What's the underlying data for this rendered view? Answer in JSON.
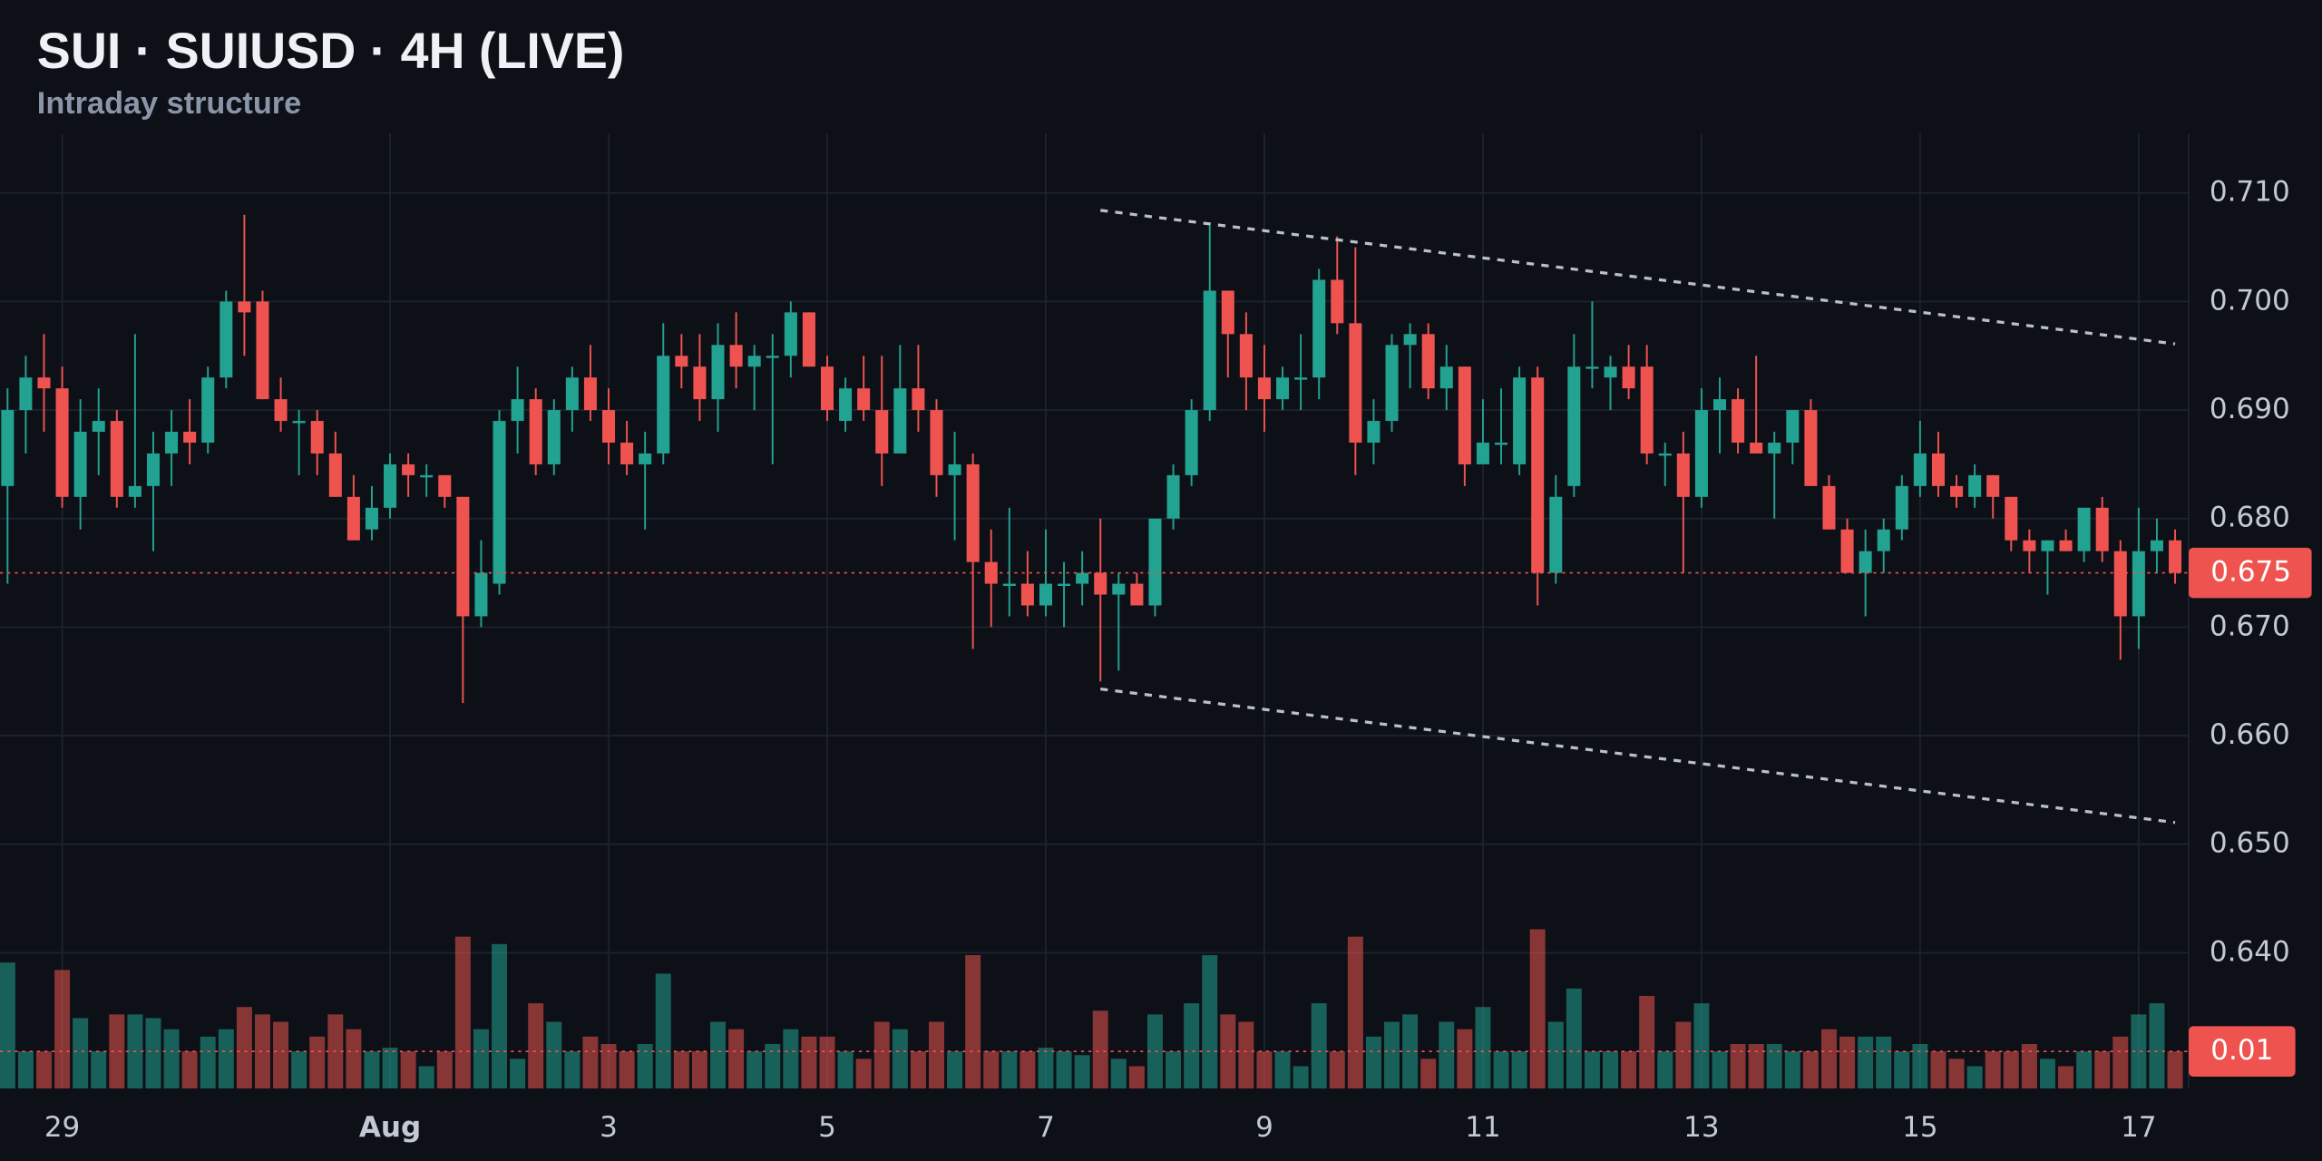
{
  "chart_data": {
    "type": "candlestick",
    "title": "SUI · SUIUSD · 4H (LIVE)",
    "subtitle": "Intraday structure",
    "categories": [
      null,
      null,
      null,
      "29",
      null,
      null,
      null,
      null,
      null,
      null,
      null,
      null,
      null,
      null,
      null,
      null,
      null,
      null,
      null,
      null,
      null,
      "Aug",
      null,
      null,
      null,
      null,
      null,
      null,
      null,
      null,
      null,
      null,
      null,
      "3",
      null,
      null,
      null,
      null,
      null,
      null,
      null,
      null,
      null,
      null,
      null,
      "5",
      null,
      null,
      null,
      null,
      null,
      null,
      null,
      null,
      null,
      null,
      null,
      "7",
      null,
      null,
      null,
      null,
      null,
      null,
      null,
      null,
      null,
      null,
      null,
      "9",
      null,
      null,
      null,
      null,
      null,
      null,
      null,
      null,
      null,
      null,
      null,
      "11",
      null,
      null,
      null,
      null,
      null,
      null,
      null,
      null,
      null,
      null,
      null,
      "13",
      null,
      null,
      null,
      null,
      null,
      null,
      null,
      null,
      null,
      null,
      null,
      "15",
      null,
      null,
      null,
      null,
      null,
      null,
      null,
      null,
      null,
      null,
      null,
      "17",
      null,
      null
    ],
    "open": [
      0.683,
      0.69,
      0.693,
      0.692,
      0.682,
      0.688,
      0.689,
      0.682,
      0.683,
      0.686,
      0.688,
      0.687,
      0.693,
      0.7,
      0.7,
      0.691,
      0.689,
      0.689,
      0.686,
      0.682,
      0.679,
      0.681,
      0.685,
      0.684,
      0.684,
      0.682,
      0.671,
      0.674,
      0.689,
      0.691,
      0.685,
      0.69,
      0.693,
      0.69,
      0.687,
      0.685,
      0.686,
      0.695,
      0.694,
      0.691,
      0.696,
      0.694,
      0.695,
      0.695,
      0.699,
      0.694,
      0.689,
      0.692,
      0.69,
      0.686,
      0.692,
      0.69,
      0.684,
      0.685,
      0.676,
      0.674,
      0.674,
      0.672,
      0.674,
      0.674,
      0.675,
      0.673,
      0.674,
      0.672,
      0.68,
      0.684,
      0.69,
      0.701,
      0.697,
      0.693,
      0.691,
      0.693,
      0.693,
      0.702,
      0.698,
      0.687,
      0.689,
      0.696,
      0.697,
      0.692,
      0.694,
      0.685,
      0.687,
      0.685,
      0.693,
      0.675,
      0.683,
      0.694,
      0.693,
      0.694,
      0.694,
      0.686,
      0.686,
      0.682,
      0.69,
      0.691,
      0.687,
      0.686,
      0.687,
      0.69,
      0.683,
      0.679,
      0.675,
      0.677,
      0.679,
      0.683,
      0.686,
      0.683,
      0.682,
      0.684,
      0.682,
      0.678,
      0.677,
      0.678,
      0.677,
      0.681,
      0.677,
      0.671,
      0.677,
      0.678
    ],
    "high": [
      0.692,
      0.695,
      0.697,
      0.694,
      0.691,
      0.692,
      0.69,
      0.697,
      0.688,
      0.69,
      0.691,
      0.694,
      0.701,
      0.708,
      0.701,
      0.693,
      0.69,
      0.69,
      0.688,
      0.684,
      0.683,
      0.686,
      0.686,
      0.685,
      0.684,
      0.682,
      0.678,
      0.69,
      0.694,
      0.692,
      0.691,
      0.694,
      0.696,
      0.692,
      0.689,
      0.688,
      0.698,
      0.697,
      0.697,
      0.698,
      0.699,
      0.696,
      0.697,
      0.7,
      0.699,
      0.695,
      0.693,
      0.695,
      0.695,
      0.696,
      0.696,
      0.691,
      0.688,
      0.686,
      0.679,
      0.681,
      0.677,
      0.679,
      0.676,
      0.677,
      0.68,
      0.675,
      0.675,
      0.68,
      0.685,
      0.691,
      0.707,
      0.701,
      0.699,
      0.696,
      0.694,
      0.697,
      0.703,
      0.706,
      0.705,
      0.691,
      0.697,
      0.698,
      0.698,
      0.696,
      0.694,
      0.691,
      0.692,
      0.694,
      0.694,
      0.684,
      0.697,
      0.7,
      0.695,
      0.696,
      0.696,
      0.687,
      0.688,
      0.692,
      0.693,
      0.692,
      0.695,
      0.688,
      0.69,
      0.691,
      0.684,
      0.68,
      0.679,
      0.68,
      0.684,
      0.689,
      0.688,
      0.684,
      0.685,
      0.684,
      0.682,
      0.679,
      0.678,
      0.679,
      0.681,
      0.682,
      0.678,
      0.681,
      0.68,
      0.679
    ],
    "low": [
      0.674,
      0.686,
      0.688,
      0.681,
      0.679,
      0.684,
      0.681,
      0.681,
      0.677,
      0.683,
      0.685,
      0.686,
      0.692,
      0.695,
      0.691,
      0.688,
      0.684,
      0.684,
      0.682,
      0.678,
      0.678,
      0.68,
      0.682,
      0.682,
      0.681,
      0.663,
      0.67,
      0.673,
      0.686,
      0.684,
      0.684,
      0.688,
      0.689,
      0.685,
      0.684,
      0.679,
      0.685,
      0.692,
      0.689,
      0.688,
      0.692,
      0.69,
      0.685,
      0.693,
      0.694,
      0.689,
      0.688,
      0.689,
      0.683,
      0.686,
      0.688,
      0.682,
      0.678,
      0.668,
      0.67,
      0.671,
      0.671,
      0.671,
      0.67,
      0.672,
      0.665,
      0.666,
      0.672,
      0.671,
      0.679,
      0.683,
      0.689,
      0.693,
      0.69,
      0.688,
      0.69,
      0.69,
      0.691,
      0.697,
      0.684,
      0.685,
      0.688,
      0.692,
      0.691,
      0.69,
      0.683,
      0.685,
      0.685,
      0.684,
      0.672,
      0.674,
      0.682,
      0.692,
      0.69,
      0.691,
      0.685,
      0.683,
      0.675,
      0.681,
      0.686,
      0.686,
      0.686,
      0.68,
      0.685,
      0.683,
      0.679,
      0.675,
      0.671,
      0.675,
      0.678,
      0.682,
      0.682,
      0.681,
      0.681,
      0.68,
      0.677,
      0.675,
      0.673,
      0.677,
      0.676,
      0.676,
      0.667,
      0.668,
      0.675,
      0.674
    ],
    "close": [
      0.69,
      0.693,
      0.692,
      0.682,
      0.688,
      0.689,
      0.682,
      0.683,
      0.686,
      0.688,
      0.687,
      0.693,
      0.7,
      0.699,
      0.691,
      0.689,
      0.689,
      0.686,
      0.682,
      0.678,
      0.681,
      0.685,
      0.684,
      0.684,
      0.682,
      0.671,
      0.675,
      0.689,
      0.691,
      0.685,
      0.69,
      0.693,
      0.69,
      0.687,
      0.685,
      0.686,
      0.695,
      0.694,
      0.691,
      0.696,
      0.694,
      0.695,
      0.695,
      0.699,
      0.694,
      0.69,
      0.692,
      0.69,
      0.686,
      0.692,
      0.69,
      0.684,
      0.685,
      0.676,
      0.674,
      0.674,
      0.672,
      0.674,
      0.674,
      0.675,
      0.673,
      0.674,
      0.672,
      0.68,
      0.684,
      0.69,
      0.701,
      0.697,
      0.693,
      0.691,
      0.693,
      0.693,
      0.702,
      0.698,
      0.687,
      0.689,
      0.696,
      0.697,
      0.692,
      0.694,
      0.685,
      0.687,
      0.687,
      0.693,
      0.675,
      0.682,
      0.694,
      0.694,
      0.694,
      0.692,
      0.686,
      0.686,
      0.682,
      0.69,
      0.691,
      0.687,
      0.686,
      0.687,
      0.69,
      0.683,
      0.679,
      0.675,
      0.677,
      0.679,
      0.683,
      0.686,
      0.683,
      0.682,
      0.684,
      0.682,
      0.678,
      0.677,
      0.678,
      0.677,
      0.681,
      0.677,
      0.671,
      0.677,
      0.678,
      0.675
    ],
    "volume": [
      0.034,
      0.01,
      0.01,
      0.032,
      0.019,
      0.01,
      0.02,
      0.02,
      0.019,
      0.016,
      0.01,
      0.014,
      0.016,
      0.022,
      0.02,
      0.018,
      0.01,
      0.014,
      0.02,
      0.016,
      0.01,
      0.011,
      0.01,
      0.006,
      0.01,
      0.041,
      0.016,
      0.039,
      0.008,
      0.023,
      0.018,
      0.01,
      0.014,
      0.012,
      0.01,
      0.012,
      0.031,
      0.01,
      0.01,
      0.018,
      0.016,
      0.01,
      0.012,
      0.016,
      0.014,
      0.014,
      0.01,
      0.008,
      0.018,
      0.016,
      0.01,
      0.018,
      0.01,
      0.036,
      0.01,
      0.01,
      0.01,
      0.011,
      0.01,
      0.009,
      0.021,
      0.008,
      0.006,
      0.02,
      0.01,
      0.023,
      0.036,
      0.02,
      0.018,
      0.01,
      0.01,
      0.006,
      0.023,
      0.01,
      0.041,
      0.014,
      0.018,
      0.02,
      0.008,
      0.018,
      0.016,
      0.022,
      0.01,
      0.01,
      0.043,
      0.018,
      0.027,
      0.01,
      0.01,
      0.01,
      0.025,
      0.01,
      0.018,
      0.023,
      0.01,
      0.012,
      0.012,
      0.012,
      0.01,
      0.01,
      0.016,
      0.014,
      0.014,
      0.014,
      0.01,
      0.012,
      0.01,
      0.008,
      0.006,
      0.01,
      0.01,
      0.012,
      0.008,
      0.006,
      0.01,
      0.01,
      0.014,
      0.02,
      0.023,
      0.01
    ],
    "up_color": "#22a291",
    "down_color": "#ef5350",
    "ylim": [
      0.6275,
      0.7155
    ],
    "yticks": [
      {
        "value": 0.64,
        "label": "0.640"
      },
      {
        "value": 0.65,
        "label": "0.650"
      },
      {
        "value": 0.66,
        "label": "0.660"
      },
      {
        "value": 0.67,
        "label": "0.670"
      },
      {
        "value": 0.68,
        "label": "0.680"
      },
      {
        "value": 0.69,
        "label": "0.690"
      },
      {
        "value": 0.7,
        "label": "0.700"
      },
      {
        "value": 0.71,
        "label": "0.710"
      }
    ],
    "volume_ylim": [
      0,
      0.06
    ],
    "grid": true,
    "trendlines": [
      {
        "start": 0.7084,
        "end": 0.6961
      },
      {
        "start": 0.6643,
        "end": 0.652
      }
    ]
  }
}
